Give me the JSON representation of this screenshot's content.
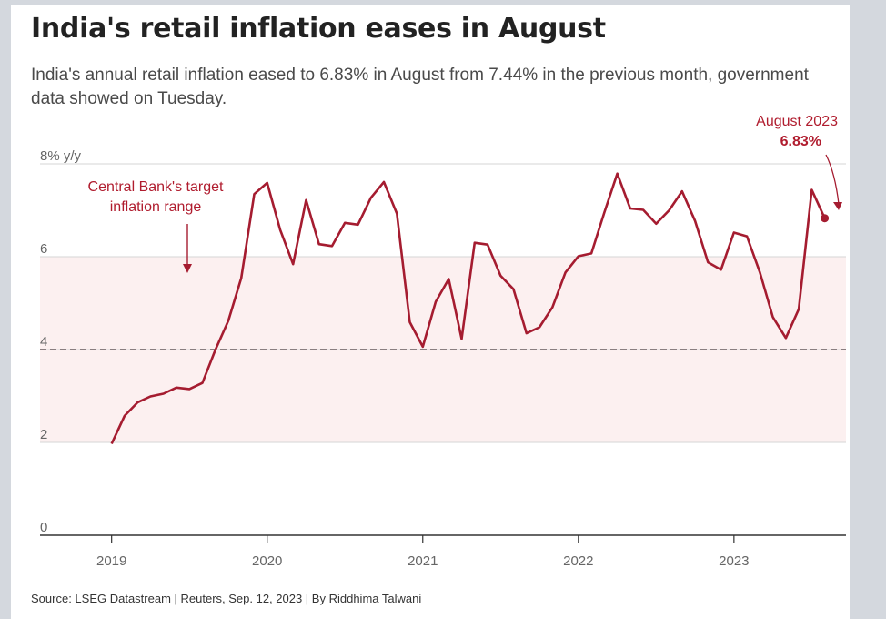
{
  "header": {
    "title": "India's retail inflation eases in August",
    "subtitle": "India's annual retail inflation eased to 6.83% in August from 7.44% in the previous month, government data showed on Tuesday."
  },
  "footer": {
    "source": "Source: LSEG Datastream | Reuters, Sep. 12, 2023 | By Riddhima Talwani"
  },
  "colors": {
    "line": "#a51c30",
    "band": "#fcf0f0",
    "target_line": "#8a7e80",
    "annotation": "#b01c2e"
  },
  "chart_data": {
    "type": "line",
    "title": "India's retail inflation eases in August",
    "ylabel": "% y/y",
    "ylim": [
      0,
      8
    ],
    "yticks": [
      0,
      2,
      4,
      6,
      8
    ],
    "ytick_labels": [
      "0",
      "2",
      "4",
      "6",
      "8% y/y"
    ],
    "xticks": [
      2019,
      2020,
      2021,
      2022,
      2023
    ],
    "xtick_labels": [
      "2019",
      "2020",
      "2021",
      "2022",
      "2023"
    ],
    "xlim": [
      2018.54,
      2023.72
    ],
    "target_range": [
      2,
      6
    ],
    "target_midpoint": 4,
    "target_label_lines": [
      "Central Bank's target",
      "inflation range"
    ],
    "last_point_label": [
      "August 2023",
      "6.83%"
    ],
    "series": [
      {
        "name": "Retail inflation",
        "start": {
          "year": 2019,
          "month": 1
        },
        "values": [
          1.97,
          2.57,
          2.86,
          2.99,
          3.05,
          3.18,
          3.15,
          3.28,
          3.99,
          4.62,
          5.54,
          7.35,
          7.59,
          6.58,
          5.84,
          7.22,
          6.27,
          6.23,
          6.73,
          6.69,
          7.27,
          7.61,
          6.93,
          4.59,
          4.06,
          5.03,
          5.52,
          4.23,
          6.3,
          6.26,
          5.59,
          5.3,
          4.35,
          4.48,
          4.91,
          5.66,
          6.01,
          6.07,
          6.95,
          7.79,
          7.04,
          7.01,
          6.71,
          7.0,
          7.41,
          6.77,
          5.88,
          5.72,
          6.52,
          6.44,
          5.66,
          4.7,
          4.25,
          4.87,
          7.44,
          6.83
        ]
      }
    ]
  }
}
